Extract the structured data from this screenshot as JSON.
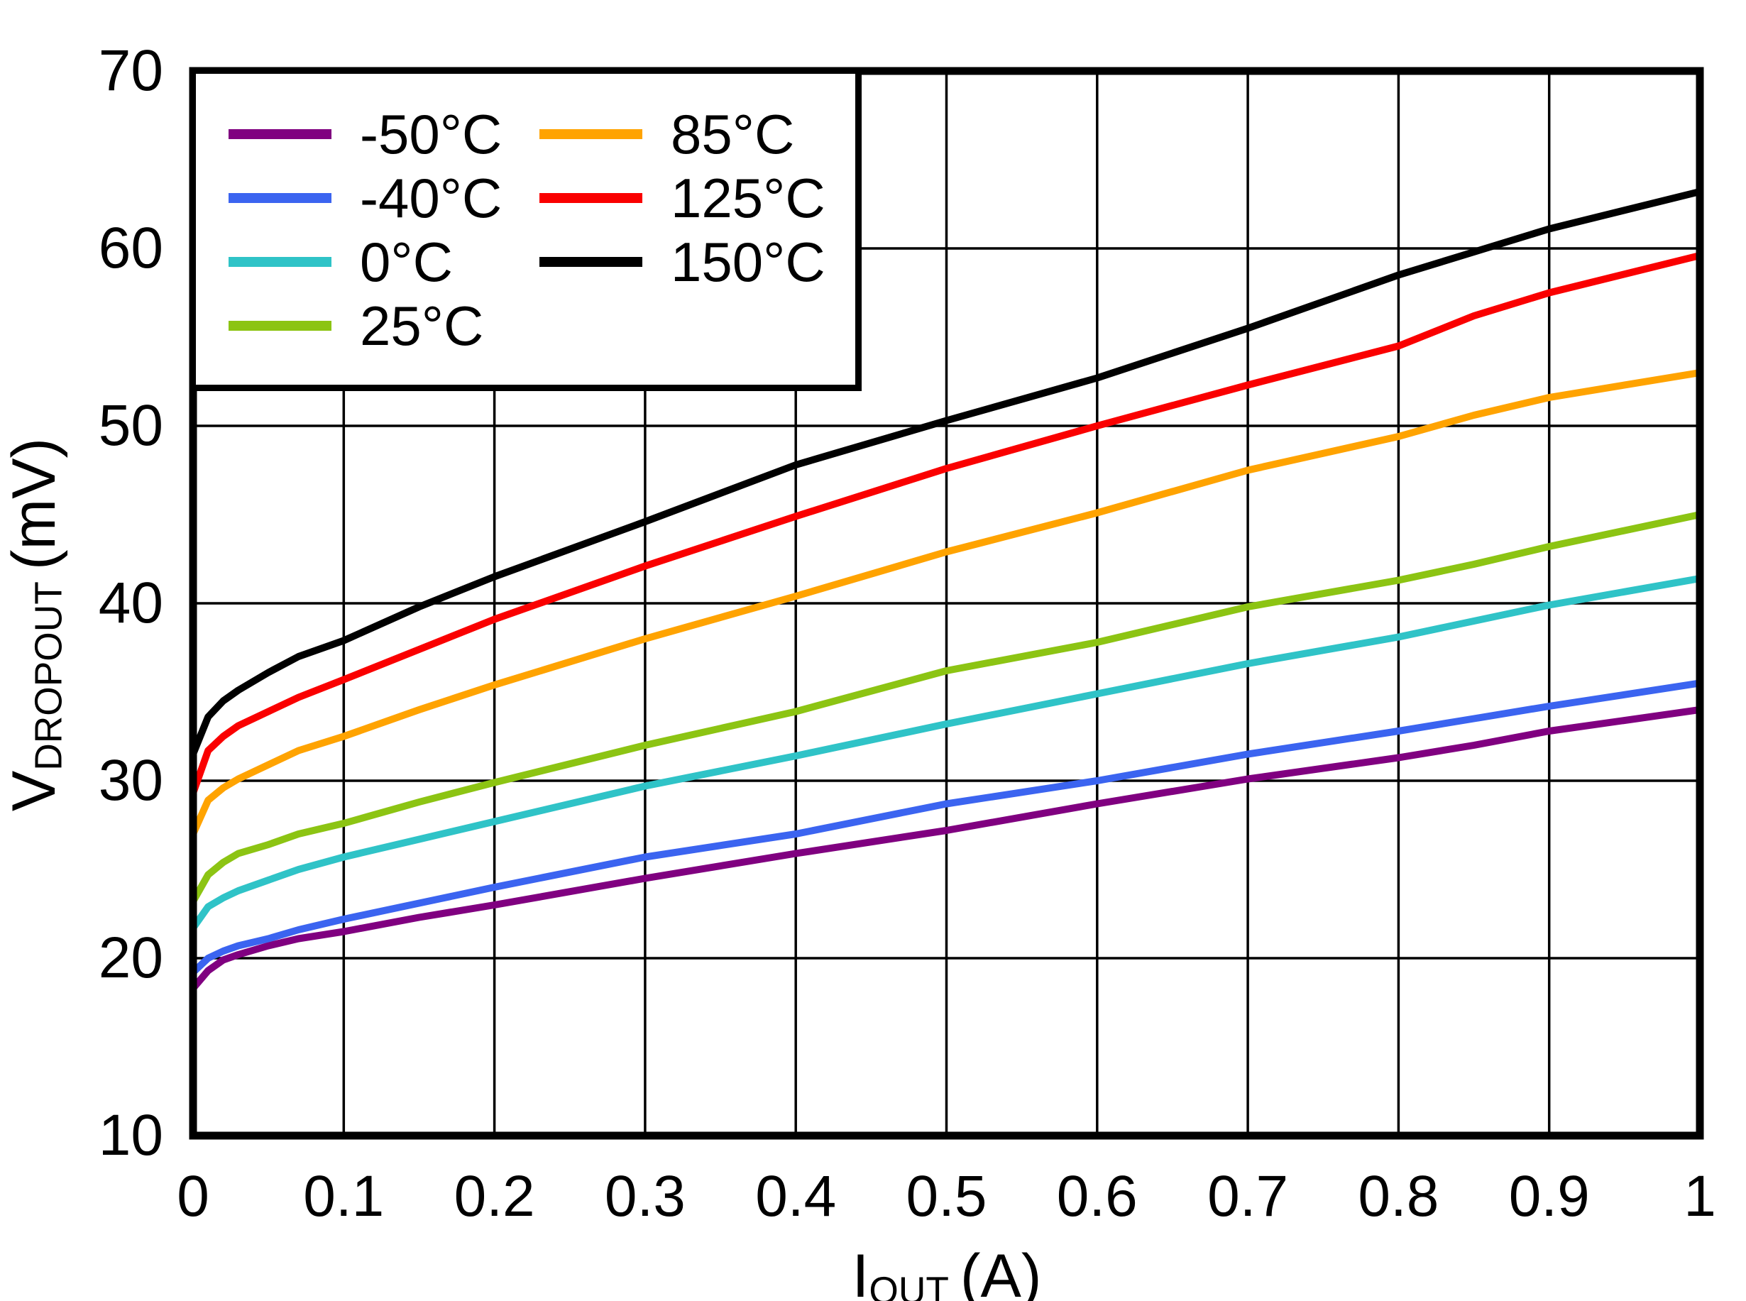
{
  "figure": {
    "background_color": "#ffffff",
    "frame_color": "#000000",
    "grid_color": "#000000"
  },
  "axes": {
    "x": {
      "label_main": "I",
      "label_sub": "OUT",
      "label_unit": "(A)",
      "min": 0,
      "max": 1,
      "tick_labels": [
        "0",
        "0.1",
        "0.2",
        "0.3",
        "0.4",
        "0.5",
        "0.6",
        "0.7",
        "0.8",
        "0.9",
        "1"
      ],
      "tick_values": [
        0,
        0.1,
        0.2,
        0.3,
        0.4,
        0.5,
        0.6,
        0.7,
        0.8,
        0.9,
        1
      ]
    },
    "y": {
      "label_main": "V",
      "label_sub": "DROPOUT",
      "label_unit": "(mV)",
      "min": 10,
      "max": 70,
      "tick_labels": [
        "10",
        "20",
        "30",
        "40",
        "50",
        "60",
        "70"
      ],
      "tick_values": [
        10,
        20,
        30,
        40,
        50,
        60,
        70
      ]
    }
  },
  "legend": {
    "column_split": 4,
    "border_color": "#000000"
  },
  "chart_data": {
    "type": "line",
    "title": "",
    "xlabel": "IOUT (A)",
    "ylabel": "VDROPOUT (mV)",
    "xlim": [
      0,
      1
    ],
    "ylim": [
      10,
      70
    ],
    "grid": true,
    "legend_position": "top-left",
    "x": [
      0,
      0.01,
      0.02,
      0.03,
      0.05,
      0.07,
      0.1,
      0.15,
      0.2,
      0.3,
      0.4,
      0.5,
      0.6,
      0.7,
      0.8,
      0.85,
      0.9,
      1.0
    ],
    "series": [
      {
        "name": "-50°C",
        "color": "#800080",
        "values": [
          18.3,
          19.3,
          19.9,
          20.2,
          20.7,
          21.1,
          21.5,
          22.3,
          23.0,
          24.5,
          25.9,
          27.2,
          28.7,
          30.1,
          31.3,
          32.0,
          32.8,
          34.0
        ]
      },
      {
        "name": "-40°C",
        "color": "#3B64F0",
        "values": [
          19.2,
          20.0,
          20.4,
          20.7,
          21.1,
          21.6,
          22.2,
          23.1,
          24.0,
          25.7,
          27.0,
          28.7,
          30.0,
          31.5,
          32.8,
          33.5,
          34.2,
          35.5
        ]
      },
      {
        "name": "0°C",
        "color": "#2FC3C7",
        "values": [
          21.7,
          22.9,
          23.4,
          23.8,
          24.4,
          25.0,
          25.7,
          26.7,
          27.7,
          29.7,
          31.4,
          33.2,
          34.9,
          36.6,
          38.1,
          39.0,
          39.9,
          41.4
        ]
      },
      {
        "name": "25°C",
        "color": "#8CC413",
        "values": [
          23.2,
          24.7,
          25.4,
          25.9,
          26.4,
          27.0,
          27.6,
          28.8,
          29.9,
          32.0,
          33.9,
          36.2,
          37.8,
          39.8,
          41.3,
          42.2,
          43.2,
          45.0
        ]
      },
      {
        "name": "85°C",
        "color": "#FFA300",
        "values": [
          27.0,
          28.9,
          29.6,
          30.1,
          30.9,
          31.7,
          32.5,
          34.0,
          35.4,
          38.0,
          40.4,
          42.9,
          45.1,
          47.5,
          49.4,
          50.6,
          51.6,
          53.0
        ]
      },
      {
        "name": "125°C",
        "color": "#FA0000",
        "values": [
          29.3,
          31.7,
          32.5,
          33.1,
          33.9,
          34.7,
          35.7,
          37.4,
          39.1,
          42.1,
          44.9,
          47.6,
          50.0,
          52.3,
          54.5,
          56.2,
          57.5,
          59.6
        ]
      },
      {
        "name": "150°C",
        "color": "#000000",
        "values": [
          31.5,
          33.6,
          34.5,
          35.1,
          36.1,
          37.0,
          37.9,
          39.8,
          41.5,
          44.6,
          47.8,
          50.3,
          52.7,
          55.5,
          58.5,
          59.8,
          61.1,
          63.2
        ]
      }
    ]
  }
}
